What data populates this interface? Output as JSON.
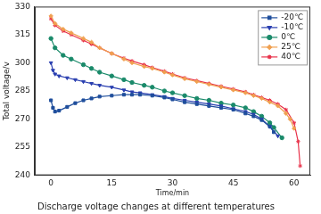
{
  "chart_data": {
    "type": "line",
    "title": "Discharge voltage changes at different temperatures",
    "x_label": "Time/min",
    "y_label": "Total voltage/v",
    "xlim": [
      -4,
      64
    ],
    "xticks": [
      0,
      15,
      30,
      45,
      60
    ],
    "ylim": [
      240,
      330
    ],
    "yticks": [
      240,
      255,
      270,
      285,
      300,
      315,
      330
    ],
    "grid": false,
    "legend": "upper right",
    "series": [
      {
        "name": "-20℃",
        "color": "#1f4e9c",
        "marker": "square",
        "x": [
          0,
          0.5,
          1,
          2,
          4,
          6,
          8,
          10,
          12,
          15,
          18,
          20,
          22,
          25,
          28,
          30,
          33,
          36,
          39,
          42,
          45,
          48,
          50,
          52,
          54,
          55
        ],
        "values": [
          280,
          276,
          274,
          274.5,
          276.5,
          278.5,
          280,
          281,
          282,
          282.5,
          283,
          283,
          283,
          282.5,
          281.5,
          280.5,
          279,
          278,
          277,
          276,
          275,
          273,
          271.5,
          269.5,
          266,
          263
        ]
      },
      {
        "name": "-10℃",
        "color": "#2a3fb0",
        "marker": "triangle_down",
        "x": [
          0,
          0.5,
          1,
          2,
          4,
          6,
          8,
          10,
          12,
          15,
          18,
          20,
          22,
          25,
          28,
          30,
          33,
          36,
          39,
          42,
          45,
          48,
          50,
          52,
          54,
          56
        ],
        "values": [
          300,
          296,
          294,
          293,
          292,
          291,
          290,
          289,
          288,
          287,
          285.5,
          284.5,
          284,
          283,
          282,
          281,
          280,
          279,
          278,
          277,
          275.5,
          274,
          272.5,
          270,
          266,
          261
        ]
      },
      {
        "name": "0℃",
        "color": "#1a8a6a",
        "marker": "circle",
        "x": [
          0,
          1,
          3,
          5,
          8,
          10,
          12,
          15,
          18,
          20,
          23,
          25,
          28,
          30,
          33,
          36,
          39,
          42,
          45,
          48,
          50,
          52,
          54,
          55,
          57
        ],
        "values": [
          313,
          308,
          304,
          302,
          299,
          297,
          295,
          293,
          291,
          289.5,
          288,
          287,
          285,
          284,
          282.5,
          281,
          280,
          278.5,
          277.5,
          276,
          274,
          271.5,
          268,
          265.5,
          260
        ]
      },
      {
        "name": "25℃",
        "color": "#f0a050",
        "marker": "diamond",
        "x": [
          0,
          1,
          3,
          5,
          8,
          10,
          12,
          15,
          18,
          20,
          23,
          25,
          28,
          30,
          33,
          36,
          39,
          42,
          45,
          48,
          50,
          52,
          54,
          56,
          58,
          59,
          60
        ],
        "values": [
          325,
          321,
          318,
          316,
          313,
          311,
          308,
          305,
          302,
          300,
          298,
          297,
          295,
          293.5,
          291.5,
          290,
          288.5,
          287,
          285.5,
          284,
          282.5,
          281,
          279,
          277,
          273,
          270,
          265
        ]
      },
      {
        "name": "40℃",
        "color": "#e8324a",
        "marker": "star",
        "x": [
          0,
          1,
          3,
          5,
          8,
          10,
          12,
          15,
          18,
          20,
          23,
          25,
          28,
          30,
          33,
          36,
          39,
          42,
          45,
          48,
          50,
          52,
          54,
          56,
          58,
          60,
          61,
          61.5
        ],
        "values": [
          323.5,
          320,
          317,
          315,
          312,
          310,
          308,
          305,
          302.5,
          301,
          299,
          297.5,
          295.5,
          294,
          292,
          290.5,
          289,
          287.5,
          286,
          284.5,
          283,
          281.5,
          280,
          278,
          275,
          268,
          258,
          245
        ]
      }
    ]
  }
}
